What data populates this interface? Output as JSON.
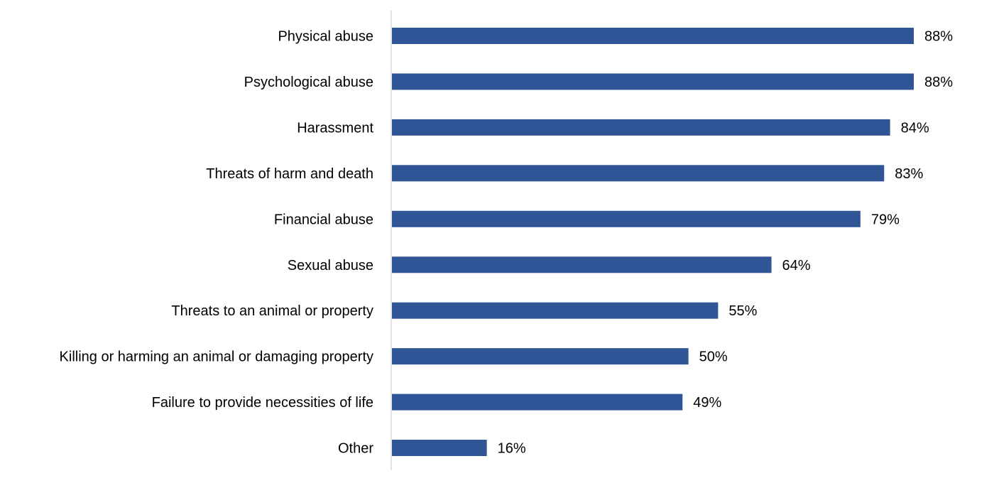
{
  "chart_data": {
    "type": "bar",
    "orientation": "horizontal",
    "categories": [
      "Physical abuse",
      "Psychological abuse",
      "Harassment",
      "Threats of harm and death",
      "Financial abuse",
      "Sexual abuse",
      "Threats to an animal or property",
      "Killing or harming an animal or damaging property",
      "Failure to provide necessities of life",
      "Other"
    ],
    "values": [
      88,
      88,
      84,
      83,
      79,
      64,
      55,
      50,
      49,
      16
    ],
    "data_labels": [
      "88%",
      "88%",
      "84%",
      "83%",
      "79%",
      "64%",
      "55%",
      "50%",
      "49%",
      "16%"
    ],
    "unit": "%",
    "xlim": [
      0,
      100
    ],
    "grid": false,
    "legend": "none",
    "bar_color": "#2F5597",
    "title": "",
    "xlabel": "",
    "ylabel": ""
  }
}
